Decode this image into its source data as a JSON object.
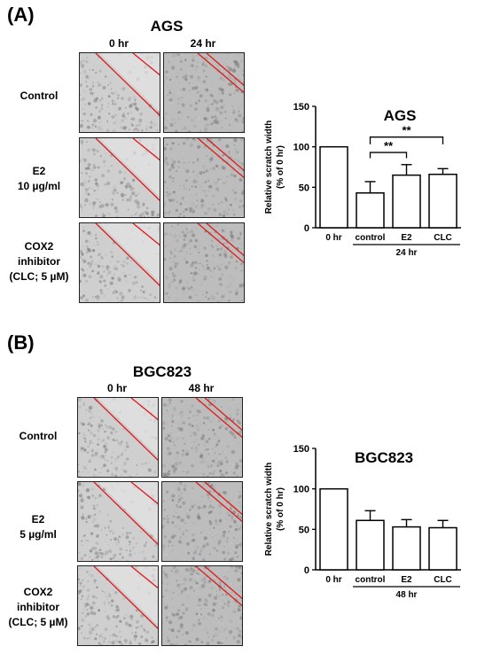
{
  "panel_a": {
    "label": "(A)",
    "cell_line": "AGS",
    "columns": [
      "0 hr",
      "24 hr"
    ],
    "rows": [
      {
        "lines": [
          "Control"
        ]
      },
      {
        "lines": [
          "E2",
          "10 µg/ml"
        ]
      },
      {
        "lines": [
          "COX2",
          "inhibitor",
          "(CLC; 5 µM)"
        ]
      }
    ]
  },
  "panel_b": {
    "label": "(B)",
    "cell_line": "BGC823",
    "columns": [
      "0 hr",
      "48 hr"
    ],
    "rows": [
      {
        "lines": [
          "Control"
        ]
      },
      {
        "lines": [
          "E2",
          "5 µg/ml"
        ]
      },
      {
        "lines": [
          "COX2",
          "inhibitor",
          "(CLC; 5 µM)"
        ]
      }
    ]
  },
  "chart_data": [
    {
      "type": "bar",
      "title": "AGS",
      "ylabel_lines": [
        "Relative scratch width",
        "(% of 0 hr)"
      ],
      "categories": [
        "0 hr",
        "control",
        "E2",
        "CLC"
      ],
      "values": [
        100,
        43,
        65,
        66
      ],
      "errors": [
        0,
        14,
        13,
        7
      ],
      "ylim": [
        0,
        150
      ],
      "yticks": [
        0,
        50,
        100,
        150
      ],
      "group_label": "24 hr",
      "significance": [
        {
          "from": "control",
          "to": "E2",
          "label": "**"
        },
        {
          "from": "control",
          "to": "CLC",
          "label": "**"
        }
      ]
    },
    {
      "type": "bar",
      "title": "BGC823",
      "ylabel_lines": [
        "Relative scratch width",
        "(% of 0 hr)"
      ],
      "categories": [
        "0 hr",
        "control",
        "E2",
        "CLC"
      ],
      "values": [
        100,
        61,
        53,
        52
      ],
      "errors": [
        0,
        12,
        9,
        9
      ],
      "ylim": [
        0,
        150
      ],
      "yticks": [
        0,
        50,
        100,
        150
      ],
      "group_label": "48 hr",
      "significance": []
    }
  ]
}
